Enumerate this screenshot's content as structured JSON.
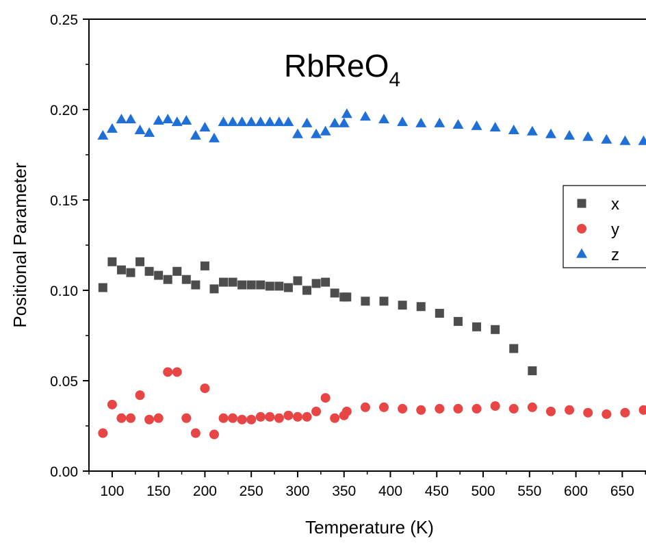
{
  "chart_data": {
    "type": "scatter",
    "title_main": "RbReO",
    "title_sub": "4",
    "xlabel": "Temperature (K)",
    "ylabel": "Positional Parameter",
    "xlim": [
      75,
      680
    ],
    "ylim": [
      0.0,
      0.25
    ],
    "xticks": [
      "100",
      "150",
      "200",
      "250",
      "300",
      "350",
      "400",
      "450",
      "500",
      "550",
      "600",
      "650"
    ],
    "yticks": [
      "0.00",
      "0.05",
      "0.10",
      "0.15",
      "0.20",
      "0.25"
    ],
    "xtick_values": [
      100,
      150,
      200,
      250,
      300,
      350,
      400,
      450,
      500,
      550,
      600,
      650
    ],
    "ytick_values": [
      0.0,
      0.05,
      0.1,
      0.15,
      0.2,
      0.25
    ],
    "legend_position": "right",
    "series": [
      {
        "name": "x",
        "marker": "square",
        "color": "#4d4d4d",
        "points": [
          [
            90,
            0.1015
          ],
          [
            100,
            0.1158
          ],
          [
            110,
            0.1113
          ],
          [
            120,
            0.1098
          ],
          [
            130,
            0.1158
          ],
          [
            140,
            0.1105
          ],
          [
            150,
            0.1083
          ],
          [
            160,
            0.106
          ],
          [
            170,
            0.1105
          ],
          [
            180,
            0.106
          ],
          [
            190,
            0.103
          ],
          [
            200,
            0.1135
          ],
          [
            210,
            0.1008
          ],
          [
            220,
            0.1045
          ],
          [
            230,
            0.1045
          ],
          [
            240,
            0.103
          ],
          [
            250,
            0.103
          ],
          [
            260,
            0.103
          ],
          [
            270,
            0.1023
          ],
          [
            280,
            0.1023
          ],
          [
            290,
            0.1015
          ],
          [
            300,
            0.1053
          ],
          [
            310,
            0.1
          ],
          [
            320,
            0.1038
          ],
          [
            330,
            0.1045
          ],
          [
            340,
            0.0985
          ],
          [
            350,
            0.0963
          ],
          [
            353,
            0.0963
          ],
          [
            373,
            0.094
          ],
          [
            393,
            0.094
          ],
          [
            413,
            0.0918
          ],
          [
            433,
            0.091
          ],
          [
            453,
            0.0873
          ],
          [
            473,
            0.0828
          ],
          [
            493,
            0.0798
          ],
          [
            513,
            0.0783
          ],
          [
            533,
            0.0678
          ],
          [
            553,
            0.0555
          ]
        ]
      },
      {
        "name": "y",
        "marker": "circle",
        "color": "#e84545",
        "points": [
          [
            90,
            0.021
          ],
          [
            100,
            0.0368
          ],
          [
            110,
            0.0293
          ],
          [
            120,
            0.0293
          ],
          [
            130,
            0.042
          ],
          [
            140,
            0.0285
          ],
          [
            150,
            0.0293
          ],
          [
            160,
            0.0548
          ],
          [
            170,
            0.0548
          ],
          [
            180,
            0.0293
          ],
          [
            190,
            0.021
          ],
          [
            200,
            0.0458
          ],
          [
            210,
            0.0203
          ],
          [
            220,
            0.0293
          ],
          [
            230,
            0.0293
          ],
          [
            240,
            0.0285
          ],
          [
            250,
            0.0285
          ],
          [
            260,
            0.03
          ],
          [
            270,
            0.03
          ],
          [
            280,
            0.0293
          ],
          [
            290,
            0.0308
          ],
          [
            300,
            0.03
          ],
          [
            310,
            0.03
          ],
          [
            320,
            0.033
          ],
          [
            330,
            0.0405
          ],
          [
            340,
            0.0293
          ],
          [
            350,
            0.0308
          ],
          [
            353,
            0.033
          ],
          [
            373,
            0.0353
          ],
          [
            393,
            0.0353
          ],
          [
            413,
            0.0345
          ],
          [
            433,
            0.0338
          ],
          [
            453,
            0.0345
          ],
          [
            473,
            0.0345
          ],
          [
            493,
            0.0345
          ],
          [
            513,
            0.036
          ],
          [
            533,
            0.0345
          ],
          [
            553,
            0.0353
          ],
          [
            573,
            0.033
          ],
          [
            593,
            0.0338
          ],
          [
            613,
            0.0323
          ],
          [
            633,
            0.0315
          ],
          [
            653,
            0.0323
          ],
          [
            673,
            0.0338
          ]
        ]
      },
      {
        "name": "z",
        "marker": "triangle",
        "color": "#1f6fd6",
        "points": [
          [
            90,
            0.1855
          ],
          [
            100,
            0.1893
          ],
          [
            110,
            0.1945
          ],
          [
            120,
            0.1945
          ],
          [
            130,
            0.1885
          ],
          [
            140,
            0.187
          ],
          [
            150,
            0.1938
          ],
          [
            160,
            0.1945
          ],
          [
            170,
            0.193
          ],
          [
            180,
            0.1938
          ],
          [
            190,
            0.1855
          ],
          [
            200,
            0.19
          ],
          [
            210,
            0.184
          ],
          [
            220,
            0.193
          ],
          [
            230,
            0.193
          ],
          [
            240,
            0.193
          ],
          [
            250,
            0.193
          ],
          [
            260,
            0.193
          ],
          [
            270,
            0.193
          ],
          [
            280,
            0.193
          ],
          [
            290,
            0.193
          ],
          [
            300,
            0.1863
          ],
          [
            310,
            0.1923
          ],
          [
            320,
            0.1863
          ],
          [
            330,
            0.1878
          ],
          [
            340,
            0.1923
          ],
          [
            350,
            0.1923
          ],
          [
            353,
            0.1975
          ],
          [
            373,
            0.196
          ],
          [
            393,
            0.1945
          ],
          [
            413,
            0.193
          ],
          [
            433,
            0.1923
          ],
          [
            453,
            0.1923
          ],
          [
            473,
            0.1915
          ],
          [
            493,
            0.1908
          ],
          [
            513,
            0.19
          ],
          [
            533,
            0.1885
          ],
          [
            553,
            0.1878
          ],
          [
            573,
            0.1863
          ],
          [
            593,
            0.1855
          ],
          [
            613,
            0.1848
          ],
          [
            633,
            0.1833
          ],
          [
            653,
            0.1825
          ],
          [
            673,
            0.1825
          ]
        ]
      }
    ]
  }
}
